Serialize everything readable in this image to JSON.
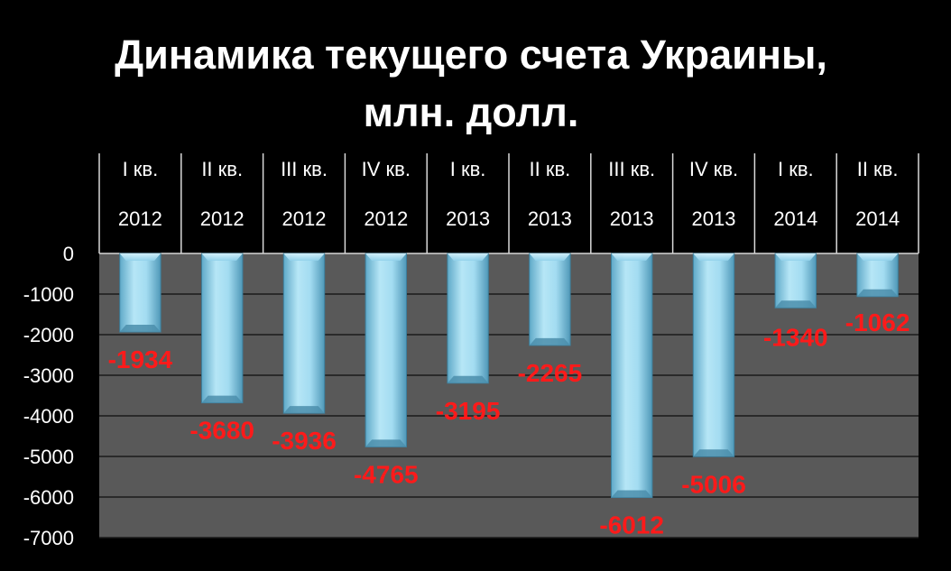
{
  "chart_data": {
    "type": "bar",
    "title": "Динамика текущего счета Украины, млн. долл.",
    "title_lines": [
      "Динамика текущего счета Украины,",
      "млн. долл."
    ],
    "categories": [
      [
        "I кв.",
        "2012"
      ],
      [
        "II кв.",
        "2012"
      ],
      [
        "III кв.",
        "2012"
      ],
      [
        "IV кв.",
        "2012"
      ],
      [
        "I кв.",
        "2013"
      ],
      [
        "II кв.",
        "2013"
      ],
      [
        "III кв.",
        "2013"
      ],
      [
        "IV кв.",
        "2013"
      ],
      [
        "I кв.",
        "2014"
      ],
      [
        "II кв.",
        "2014"
      ]
    ],
    "values": [
      -1934,
      -3680,
      -3936,
      -4765,
      -3195,
      -2265,
      -6012,
      -5006,
      -1340,
      -1062
    ],
    "data_labels": [
      "-1934",
      "-3680",
      "-3936",
      "-4765",
      "-3195",
      "-2265",
      "-6012",
      "-5006",
      "-1340",
      "-1062"
    ],
    "ylim": [
      -7000,
      0
    ],
    "yticks": [
      0,
      -1000,
      -2000,
      -3000,
      -4000,
      -5000,
      -6000,
      -7000
    ],
    "ytick_labels": [
      "0",
      "-1000",
      "-2000",
      "-3000",
      "-4000",
      "-5000",
      "-6000",
      "-7000"
    ],
    "xlabel": "",
    "ylabel": "",
    "grid": true,
    "legend": "none",
    "colors": {
      "background": "#000000",
      "plot_area": "#595959",
      "bar": "#8fd0ea",
      "bar_edge": "#3d7f9c",
      "data_label": "#ff1a1a",
      "text": "#ffffff",
      "grid": "#1a1a1a"
    }
  }
}
